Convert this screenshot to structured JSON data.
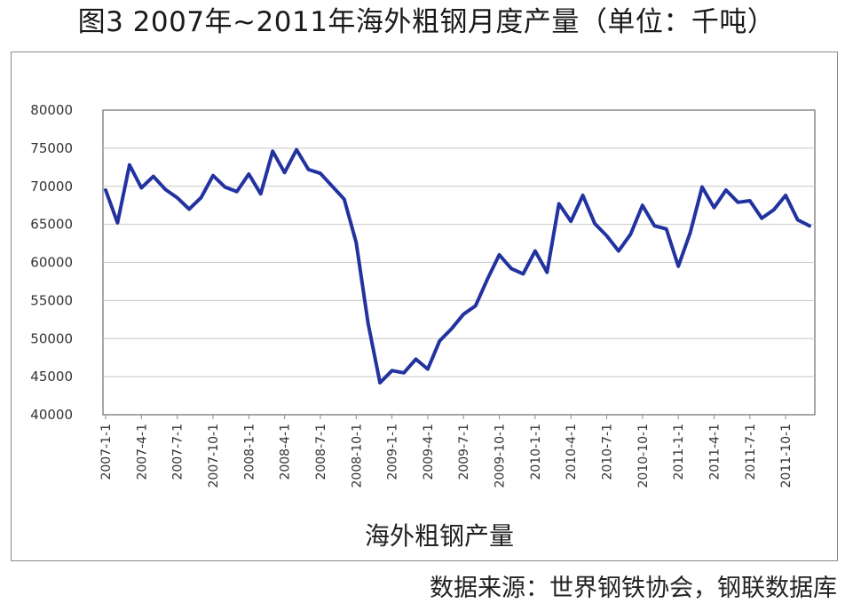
{
  "title": "图3  2007年~2011年海外粗钢月度产量（单位：千吨）",
  "source": "数据来源：世界钢铁协会，钢联数据库",
  "colors": {
    "line": "#2233a0",
    "grid": "#c8c8c8",
    "axis": "#888888"
  },
  "chart_data": {
    "type": "line",
    "title": "图3  2007年~2011年海外粗钢月度产量（单位：千吨）",
    "xlabel": "海外粗钢产量",
    "ylabel": "",
    "ylim": [
      40000,
      80000
    ],
    "yticks": [
      40000,
      45000,
      50000,
      55000,
      60000,
      65000,
      70000,
      75000,
      80000
    ],
    "ytick_labels": [
      "40000",
      "45000",
      "50000",
      "55000",
      "60000",
      "65000",
      "70000",
      "75000",
      "80000"
    ],
    "grid": true,
    "xtick_labels": [
      "2007-1-1",
      "2007-4-1",
      "2007-7-1",
      "2007-10-1",
      "2008-1-1",
      "2008-4-1",
      "2008-7-1",
      "2008-10-1",
      "2009-1-1",
      "2009-4-1",
      "2009-7-1",
      "2009-10-1",
      "2010-1-1",
      "2010-4-1",
      "2010-7-1",
      "2010-10-1",
      "2011-1-1",
      "2011-4-1",
      "2011-7-1",
      "2011-10-1"
    ],
    "series": [
      {
        "values": [
          69500,
          65200,
          72800,
          69800,
          71300,
          69600,
          68500,
          67000,
          68500,
          71400,
          69900,
          69300,
          71600,
          69000,
          74600,
          71800,
          74800,
          72200,
          71700,
          70000,
          68300,
          62600,
          52000,
          44200,
          45800,
          45500,
          47300,
          46000,
          49700,
          51300,
          53200,
          54300,
          57800,
          61000,
          59200,
          58500,
          61500,
          58700,
          67700,
          65400,
          68800,
          65100,
          63500,
          61500,
          63700,
          67500,
          64800,
          64400,
          59500,
          63900,
          69900,
          67200,
          69500,
          67900,
          68100,
          65800,
          66900,
          68800,
          65600,
          64800
        ]
      }
    ]
  }
}
